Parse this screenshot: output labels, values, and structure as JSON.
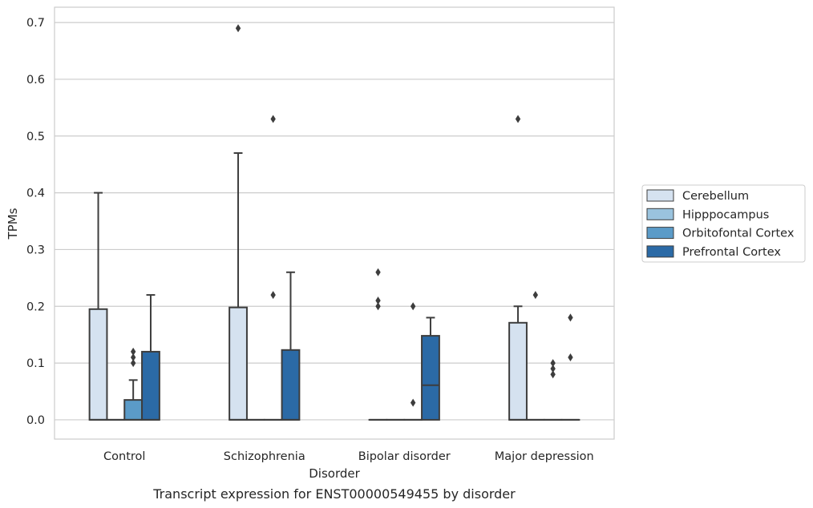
{
  "chart_data": {
    "type": "box",
    "title": "Transcript expression for ENST00000549455 by disorder",
    "xlabel": "Disorder",
    "ylabel": "TPMs",
    "ylim": [
      -0.034,
      0.727
    ],
    "yticks": [
      "0.0",
      "0.1",
      "0.2",
      "0.3",
      "0.4",
      "0.5",
      "0.6",
      "0.7"
    ],
    "grid": "horizontal",
    "legend_position": "right",
    "categories": [
      "Control",
      "Schizophrenia",
      "Bipolar disorder",
      "Major depression"
    ],
    "series": [
      {
        "name": "Cerebellum",
        "color": "#d5e2f0",
        "boxes": [
          {
            "q1": 0.0,
            "median": 0.0,
            "q3": 0.195,
            "whisker_low": 0.0,
            "whisker_high": 0.4,
            "outliers": []
          },
          {
            "q1": 0.0,
            "median": 0.0,
            "q3": 0.198,
            "whisker_low": 0.0,
            "whisker_high": 0.47,
            "outliers": [
              0.69
            ]
          },
          {
            "q1": 0.0,
            "median": 0.0,
            "q3": 0.0,
            "whisker_low": 0.0,
            "whisker_high": 0.0,
            "outliers": [
              0.26,
              0.21,
              0.2
            ]
          },
          {
            "q1": 0.0,
            "median": 0.0,
            "q3": 0.171,
            "whisker_low": 0.0,
            "whisker_high": 0.2,
            "outliers": [
              0.53
            ]
          }
        ]
      },
      {
        "name": "Hipppocampus",
        "color": "#9ac3de",
        "boxes": [
          {
            "q1": 0.0,
            "median": 0.0,
            "q3": 0.0,
            "whisker_low": 0.0,
            "whisker_high": 0.0,
            "outliers": []
          },
          {
            "q1": 0.0,
            "median": 0.0,
            "q3": 0.0,
            "whisker_low": 0.0,
            "whisker_high": 0.0,
            "outliers": []
          },
          {
            "q1": 0.0,
            "median": 0.0,
            "q3": 0.0,
            "whisker_low": 0.0,
            "whisker_high": 0.0,
            "outliers": []
          },
          {
            "q1": 0.0,
            "median": 0.0,
            "q3": 0.0,
            "whisker_low": 0.0,
            "whisker_high": 0.0,
            "outliers": [
              0.22
            ]
          }
        ]
      },
      {
        "name": "Orbitofontal Cortex",
        "color": "#5b9bc8",
        "boxes": [
          {
            "q1": 0.0,
            "median": 0.0,
            "q3": 0.035,
            "whisker_low": 0.0,
            "whisker_high": 0.07,
            "outliers": [
              0.12,
              0.11,
              0.1
            ]
          },
          {
            "q1": 0.0,
            "median": 0.0,
            "q3": 0.0,
            "whisker_low": 0.0,
            "whisker_high": 0.0,
            "outliers": [
              0.53,
              0.22
            ]
          },
          {
            "q1": 0.0,
            "median": 0.0,
            "q3": 0.0,
            "whisker_low": 0.0,
            "whisker_high": 0.0,
            "outliers": [
              0.2,
              0.03
            ]
          },
          {
            "q1": 0.0,
            "median": 0.0,
            "q3": 0.0,
            "whisker_low": 0.0,
            "whisker_high": 0.0,
            "outliers": [
              0.1,
              0.09,
              0.08
            ]
          }
        ]
      },
      {
        "name": "Prefrontal Cortex",
        "color": "#2b6aa6",
        "boxes": [
          {
            "q1": 0.0,
            "median": 0.0,
            "q3": 0.12,
            "whisker_low": 0.0,
            "whisker_high": 0.22,
            "outliers": []
          },
          {
            "q1": 0.0,
            "median": 0.0,
            "q3": 0.123,
            "whisker_low": 0.0,
            "whisker_high": 0.26,
            "outliers": []
          },
          {
            "q1": 0.0,
            "median": 0.061,
            "q3": 0.148,
            "whisker_low": 0.0,
            "whisker_high": 0.18,
            "outliers": []
          },
          {
            "q1": 0.0,
            "median": 0.0,
            "q3": 0.0,
            "whisker_low": 0.0,
            "whisker_high": 0.0,
            "outliers": [
              0.18,
              0.11
            ]
          }
        ]
      }
    ]
  }
}
